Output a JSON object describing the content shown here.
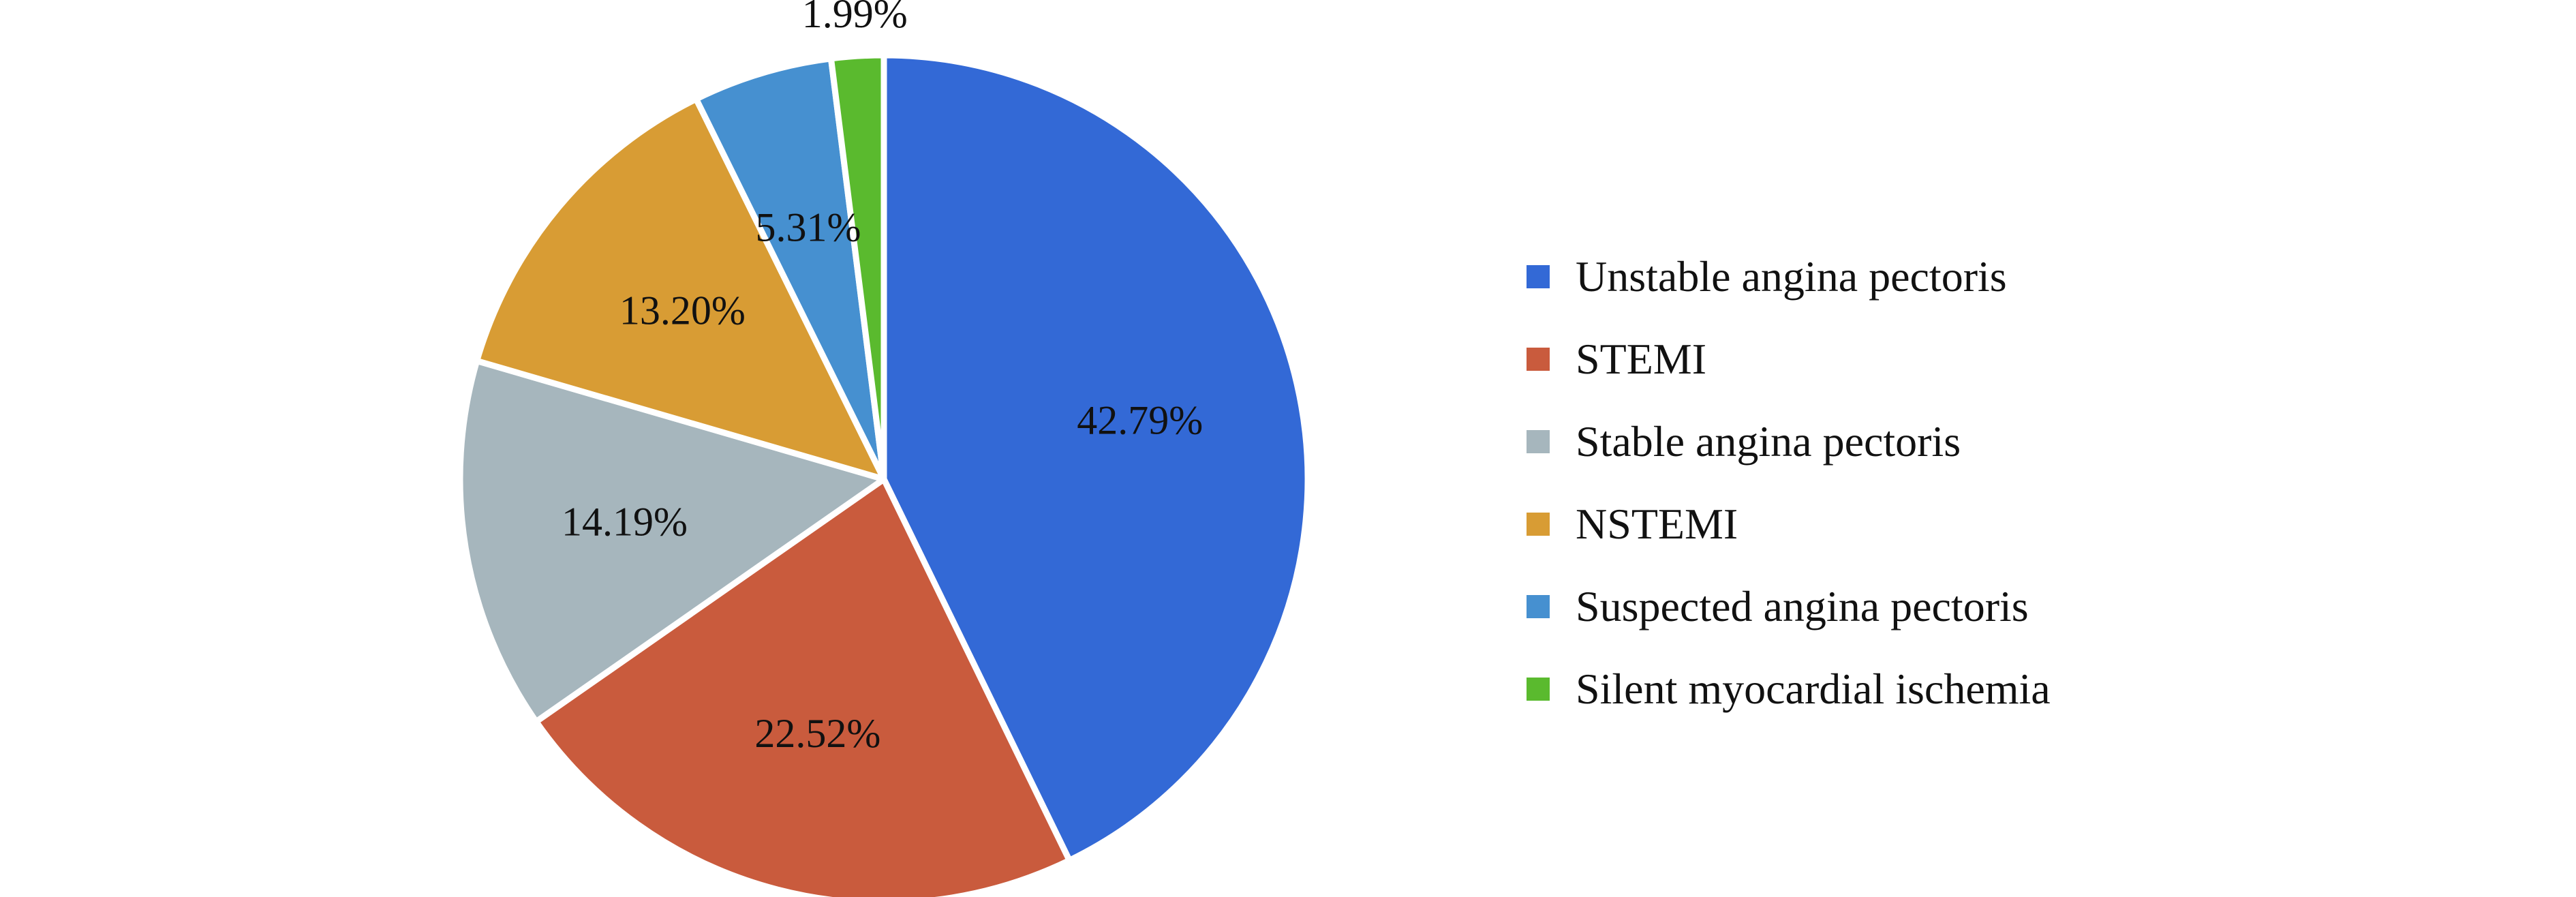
{
  "chart_data": {
    "type": "pie",
    "categories": [
      "Unstable angina pectoris",
      "STEMI",
      "Stable angina pectoris",
      "NSTEMI",
      "Suspected angina pectoris",
      "Silent myocardial ischemia"
    ],
    "values": [
      42.79,
      22.52,
      14.19,
      13.2,
      5.31,
      1.99
    ],
    "data_labels": [
      "42.79%",
      "22.52%",
      "14.19%",
      "13.20%",
      "5.31%",
      "1.99%"
    ],
    "colors": [
      "#3369d6",
      "#c95b3d",
      "#a6b6bd",
      "#d89c34",
      "#4690d0",
      "#5aba2e"
    ],
    "start_angle": "12 o'clock",
    "direction": "clockwise",
    "legend_position": "right"
  }
}
